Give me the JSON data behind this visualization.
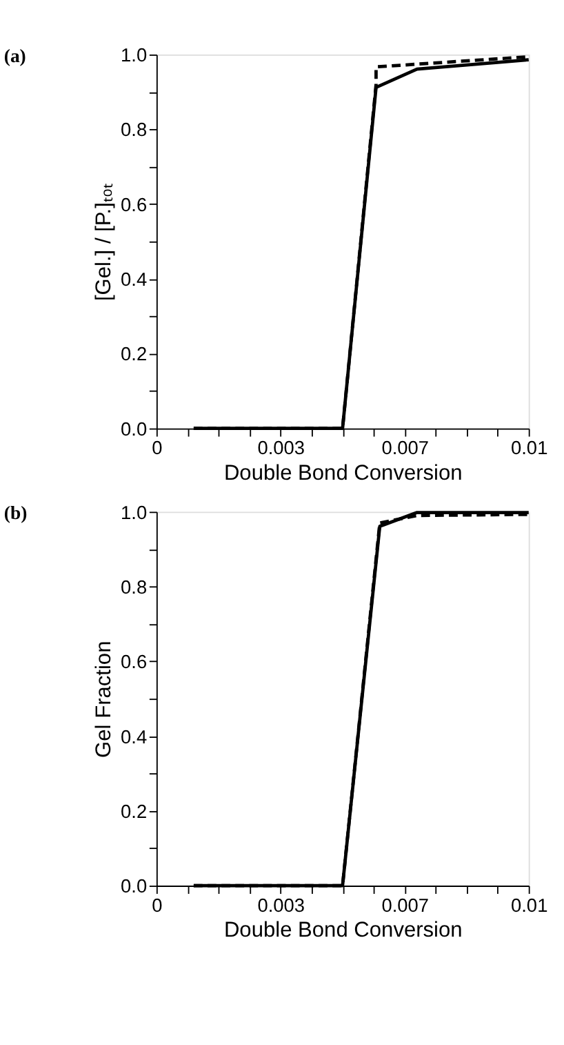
{
  "chart_data": [
    {
      "type": "line",
      "title": "(a)",
      "xlabel": "Double Bond Conversion",
      "ylabel": "[Gel.] / [P.]ₜₒₜ",
      "xlim": [
        0,
        0.01
      ],
      "ylim": [
        0,
        1.0
      ],
      "xticks": [
        0,
        {
          "value": 0.000833,
          "label": null
        },
        {
          "value": 0.001667,
          "label": null
        },
        {
          "value": 0.0025,
          "label": null
        },
        {
          "value": 0.003333,
          "label": "0.003"
        },
        {
          "value": 0.004167,
          "label": null
        },
        {
          "value": 0.005,
          "label": null
        },
        {
          "value": 0.005833,
          "label": null
        },
        {
          "value": 0.006667,
          "label": "0.007"
        },
        {
          "value": 0.0075,
          "label": null
        },
        {
          "value": 0.008333,
          "label": null
        },
        {
          "value": 0.009167,
          "label": null
        },
        0.01
      ],
      "yticks": [
        {
          "value": 0,
          "label": "0.0"
        },
        {
          "value": 0.1,
          "label": null
        },
        0.2,
        {
          "value": 0.3,
          "label": null
        },
        0.4,
        {
          "value": 0.5,
          "label": null
        },
        0.6,
        {
          "value": 0.7,
          "label": null
        },
        0.8,
        {
          "value": 0.9,
          "label": null
        },
        {
          "value": 1.0,
          "label": "1.0"
        }
      ],
      "grid": false,
      "series": [
        {
          "color": "#000000",
          "line_style": "dashed",
          "x": [
            0.001,
            0.005,
            0.0059,
            0.0059,
            0.01
          ],
          "values": [
            0,
            0,
            0.92,
            0.967,
            0.994
          ]
        },
        {
          "color": "#000000",
          "line_style": "solid",
          "x": [
            0.001,
            0.005,
            0.0059,
            0.007,
            0.01
          ],
          "values": [
            0,
            0,
            0.912,
            0.961,
            0.986
          ]
        }
      ]
    },
    {
      "type": "line",
      "title": "(b)",
      "xlabel": "Double Bond Conversion",
      "ylabel": "Gel Fraction",
      "xlim": [
        0,
        0.01
      ],
      "ylim": [
        0,
        1.0
      ],
      "xticks": [
        0,
        {
          "value": 0.000833,
          "label": null
        },
        {
          "value": 0.001667,
          "label": null
        },
        {
          "value": 0.0025,
          "label": null
        },
        {
          "value": 0.003333,
          "label": "0.003"
        },
        {
          "value": 0.004167,
          "label": null
        },
        {
          "value": 0.005,
          "label": null
        },
        {
          "value": 0.005833,
          "label": null
        },
        {
          "value": 0.006667,
          "label": "0.007"
        },
        {
          "value": 0.0075,
          "label": null
        },
        {
          "value": 0.008333,
          "label": null
        },
        {
          "value": 0.009167,
          "label": null
        },
        0.01
      ],
      "yticks": [
        {
          "value": 0,
          "label": "0.0"
        },
        {
          "value": 0.1,
          "label": null
        },
        0.2,
        {
          "value": 0.3,
          "label": null
        },
        0.4,
        {
          "value": 0.5,
          "label": null
        },
        0.6,
        {
          "value": 0.7,
          "label": null
        },
        0.8,
        {
          "value": 0.9,
          "label": null
        },
        {
          "value": 1.0,
          "label": "1.0"
        }
      ],
      "grid": false,
      "series": [
        {
          "color": "#000000",
          "line_style": "dashed",
          "x": [
            0.001,
            0.005,
            0.006,
            0.007,
            0.01
          ],
          "values": [
            0,
            0,
            0.97,
            0.99,
            0.993
          ]
        },
        {
          "color": "#000000",
          "line_style": "solid",
          "x": [
            0.001,
            0.005,
            0.006,
            0.007,
            0.01
          ],
          "values": [
            0,
            0,
            0.961,
            0.998,
            0.998
          ]
        }
      ]
    }
  ]
}
